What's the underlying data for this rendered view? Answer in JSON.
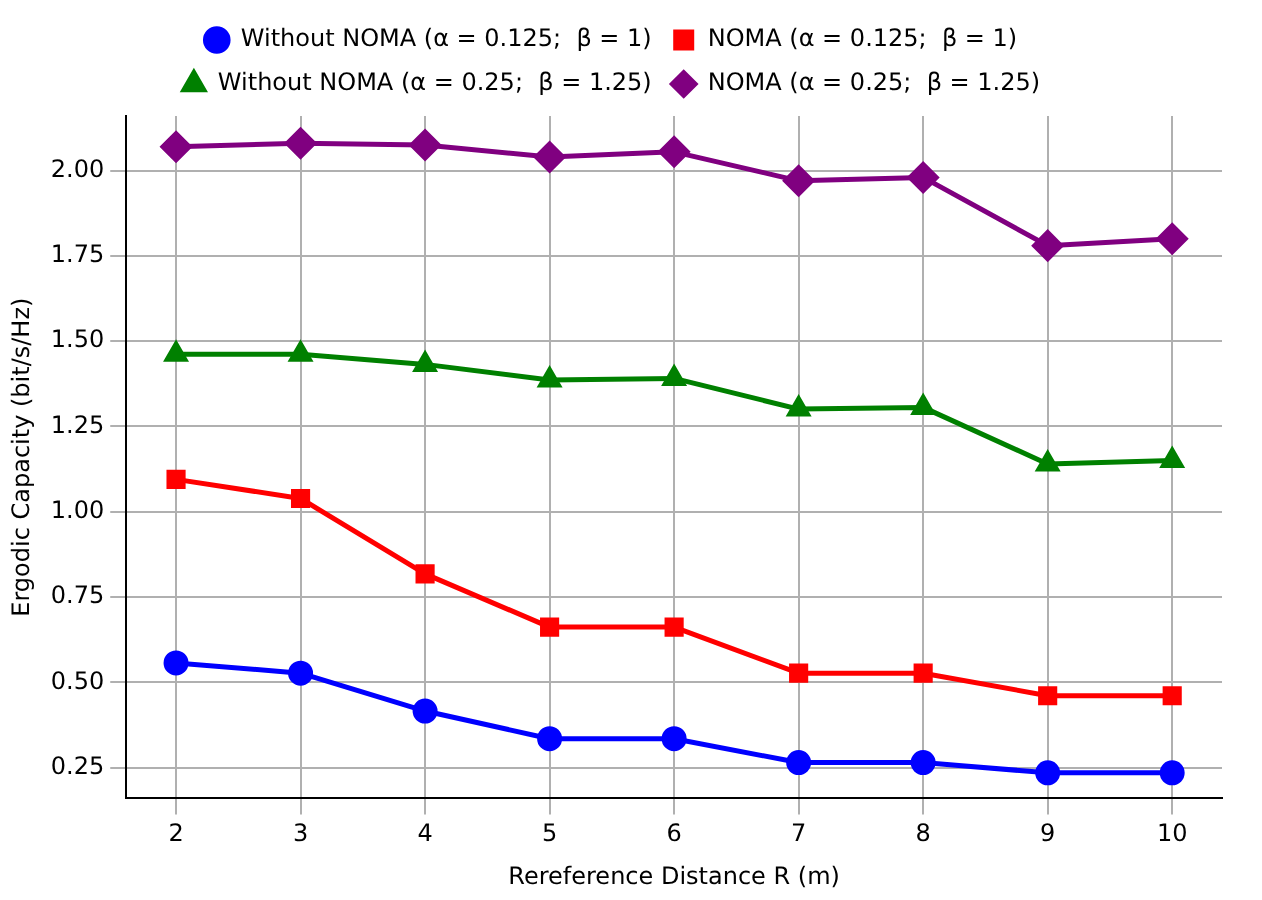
{
  "chart_data": {
    "type": "line",
    "xlabel": "Rereference Distance R (m)",
    "ylabel": "Ergodic Capacity (bit/s/Hz)",
    "x": [
      2,
      3,
      4,
      5,
      6,
      7,
      8,
      9,
      10
    ],
    "series": [
      {
        "name": "Without NOMA (α = 0.125;  β = 1)",
        "color": "#0000ff",
        "marker": "circle",
        "values": [
          0.557,
          0.527,
          0.416,
          0.335,
          0.335,
          0.265,
          0.265,
          0.235,
          0.235
        ]
      },
      {
        "name": "NOMA (α = 0.125;  β = 1)",
        "color": "#ff0000",
        "marker": "square",
        "values": [
          1.095,
          1.039,
          0.818,
          0.662,
          0.662,
          0.527,
          0.527,
          0.461,
          0.461
        ]
      },
      {
        "name": "Without NOMA (α = 0.25;  β = 1.25)",
        "color": "#008000",
        "marker": "triangle",
        "values": [
          1.462,
          1.462,
          1.432,
          1.386,
          1.391,
          1.301,
          1.306,
          1.14,
          1.15
        ]
      },
      {
        "name": "NOMA (α = 0.25;  β = 1.25)",
        "color": "#800080",
        "marker": "diamond",
        "values": [
          2.07,
          2.08,
          2.075,
          2.04,
          2.055,
          1.97,
          1.98,
          1.78,
          1.8
        ]
      }
    ],
    "xlim": [
      1.6,
      10.4
    ],
    "xticks": [
      2,
      3,
      4,
      5,
      6,
      7,
      8,
      9,
      10
    ],
    "ylim": [
      0.16,
      2.16
    ],
    "yticks": [
      {
        "value": 0.25,
        "label": "0.25"
      },
      {
        "value": 0.5,
        "label": "0.50"
      },
      {
        "value": 0.75,
        "label": "0.75"
      },
      {
        "value": 1,
        "label": "1.00"
      },
      {
        "value": 1.25,
        "label": "1.25"
      },
      {
        "value": 1.5,
        "label": "1.50"
      },
      {
        "value": 1.75,
        "label": "1.75"
      },
      {
        "value": 2,
        "label": "2.00"
      }
    ],
    "grid": true,
    "legend": "top",
    "line_style": "solid"
  }
}
